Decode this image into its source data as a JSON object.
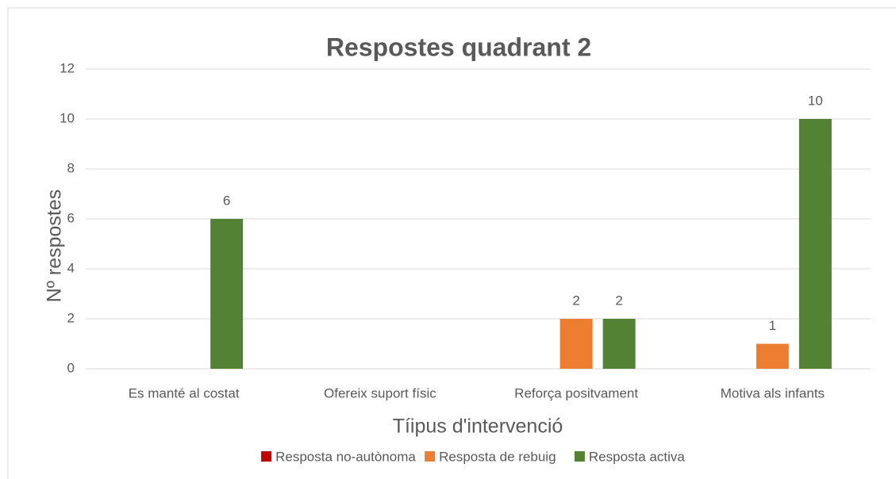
{
  "chart_data": {
    "type": "bar",
    "title": "Respostes quadrant 2",
    "x_label": "Tíipus d'intervenció",
    "y_label": "Nº respostes",
    "categories": [
      "Es manté al costat",
      "Ofereix suport físic",
      "Reforça positvament",
      "Motiva als infants"
    ],
    "series": [
      {
        "name": "Resposta no-autònoma",
        "color": "#c00000",
        "values": [
          0,
          0,
          0,
          0
        ],
        "value_labels": [
          null,
          null,
          null,
          null
        ]
      },
      {
        "name": "Resposta de rebuig",
        "color": "#ed7d31",
        "values": [
          0,
          0,
          2,
          1
        ],
        "value_labels": [
          null,
          null,
          "2",
          "1"
        ]
      },
      {
        "name": "Resposta activa",
        "color": "#548235",
        "values": [
          6,
          0,
          2,
          10
        ],
        "value_labels": [
          "6",
          null,
          "2",
          "10"
        ]
      }
    ],
    "ylim": [
      0,
      12
    ],
    "yticks": [
      0,
      2,
      4,
      6,
      8,
      10,
      12
    ],
    "grid": true,
    "legend": "bottom"
  }
}
